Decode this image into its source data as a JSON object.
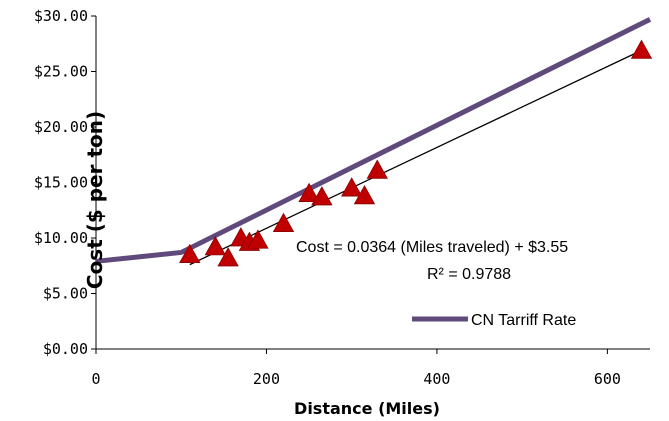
{
  "chart_data": {
    "type": "scatter",
    "xlabel": "Distance (Miles)",
    "ylabel": "Cost ($ per ton)",
    "xlim": [
      0,
      650
    ],
    "ylim": [
      0,
      30
    ],
    "x_ticks": [
      0,
      200,
      400,
      600
    ],
    "x_tick_labels": [
      "0",
      "200",
      "400",
      "600"
    ],
    "y_ticks": [
      0,
      5,
      10,
      15,
      20,
      25,
      30
    ],
    "y_tick_labels": [
      "$0.00",
      "$5.00",
      "$10.00",
      "$15.00",
      "$20.00",
      "$25.00",
      "$30.00"
    ],
    "grid": false,
    "series": [
      {
        "marker": "triangle",
        "color": "#C00000",
        "x": [
          110,
          140,
          155,
          170,
          180,
          190,
          220,
          250,
          265,
          300,
          315,
          330,
          640
        ],
        "y": [
          8.5,
          9.2,
          8.2,
          10.0,
          9.6,
          9.8,
          11.3,
          14.0,
          13.7,
          14.5,
          13.8,
          16.1,
          26.9
        ]
      },
      {
        "name": "CN Tarriff Rate",
        "type": "line",
        "color": "#604A7B",
        "x": [
          0,
          100,
          650
        ],
        "y": [
          7.9,
          8.7,
          29.7
        ]
      }
    ],
    "trendline": {
      "color": "#000000",
      "x": [
        110,
        640
      ],
      "y": [
        7.6,
        26.9
      ]
    },
    "annotations": [
      "Cost  = 0.0364 (Miles traveled) + $3.55",
      "R² = 0.9788"
    ],
    "legend_position": "bottom-right"
  }
}
